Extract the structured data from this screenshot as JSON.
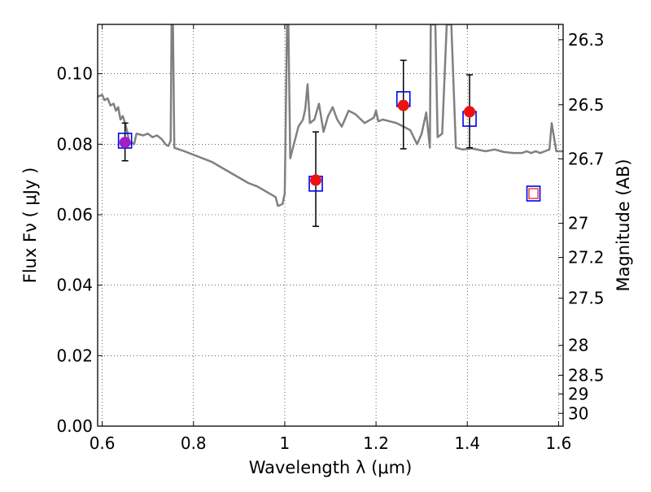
{
  "chart_data": {
    "type": "scatter",
    "xlabel": "Wavelength  λ (μm)",
    "ylabel": "Flux  Fν  ( μJy )",
    "ylabel_right": "Magnitude (AB)",
    "xlim": [
      0.59,
      1.61
    ],
    "ylim": [
      0.0,
      0.114
    ],
    "grid": "dotted",
    "x_ticks": [
      0.6,
      0.8,
      1.0,
      1.2,
      1.4,
      1.6
    ],
    "x_tick_labels": [
      "0.6",
      "0.8",
      "1",
      "1.2",
      "1.4",
      "1.6"
    ],
    "y_ticks": [
      0.0,
      0.02,
      0.04,
      0.06,
      0.08,
      0.1
    ],
    "y_tick_labels": [
      "0.00",
      "0.02",
      "0.04",
      "0.06",
      "0.08",
      "0.10"
    ],
    "right_ticks": [
      26.3,
      26.5,
      26.7,
      27,
      27.2,
      27.5,
      28,
      28.5,
      29,
      30
    ],
    "right_tick_labels": [
      "26.3",
      "26.5",
      "26.7",
      "27",
      "27.2",
      "27.5",
      "28",
      "28.5",
      "29",
      "30"
    ],
    "series": [
      {
        "kind": "model_spectrum",
        "color": "#808080",
        "points": [
          [
            0.59,
            0.0935
          ],
          [
            0.6,
            0.094
          ],
          [
            0.605,
            0.0925
          ],
          [
            0.612,
            0.093
          ],
          [
            0.618,
            0.091
          ],
          [
            0.625,
            0.0915
          ],
          [
            0.63,
            0.0895
          ],
          [
            0.635,
            0.0905
          ],
          [
            0.64,
            0.087
          ],
          [
            0.645,
            0.088
          ],
          [
            0.65,
            0.086
          ],
          [
            0.655,
            0.0835
          ],
          [
            0.66,
            0.08
          ],
          [
            0.665,
            0.0805
          ],
          [
            0.67,
            0.08
          ],
          [
            0.675,
            0.083
          ],
          [
            0.69,
            0.0825
          ],
          [
            0.7,
            0.083
          ],
          [
            0.71,
            0.082
          ],
          [
            0.72,
            0.0825
          ],
          [
            0.73,
            0.0815
          ],
          [
            0.74,
            0.0798
          ],
          [
            0.745,
            0.0795
          ],
          [
            0.75,
            0.081
          ],
          [
            0.752,
            0.114
          ],
          [
            0.755,
            0.114
          ],
          [
            0.758,
            0.079
          ],
          [
            0.78,
            0.078
          ],
          [
            0.8,
            0.077
          ],
          [
            0.82,
            0.076
          ],
          [
            0.84,
            0.075
          ],
          [
            0.86,
            0.0735
          ],
          [
            0.88,
            0.072
          ],
          [
            0.9,
            0.0705
          ],
          [
            0.92,
            0.069
          ],
          [
            0.94,
            0.068
          ],
          [
            0.96,
            0.0665
          ],
          [
            0.98,
            0.065
          ],
          [
            0.985,
            0.0625
          ],
          [
            0.995,
            0.063
          ],
          [
            1.0,
            0.066
          ],
          [
            1.005,
            0.114
          ],
          [
            1.008,
            0.114
          ],
          [
            1.012,
            0.076
          ],
          [
            1.02,
            0.08
          ],
          [
            1.03,
            0.085
          ],
          [
            1.04,
            0.087
          ],
          [
            1.045,
            0.09
          ],
          [
            1.05,
            0.097
          ],
          [
            1.055,
            0.086
          ],
          [
            1.065,
            0.087
          ],
          [
            1.075,
            0.0915
          ],
          [
            1.085,
            0.0835
          ],
          [
            1.095,
            0.088
          ],
          [
            1.105,
            0.0905
          ],
          [
            1.115,
            0.087
          ],
          [
            1.125,
            0.085
          ],
          [
            1.14,
            0.0895
          ],
          [
            1.155,
            0.0885
          ],
          [
            1.175,
            0.086
          ],
          [
            1.195,
            0.0875
          ],
          [
            1.2,
            0.0895
          ],
          [
            1.205,
            0.0865
          ],
          [
            1.215,
            0.087
          ],
          [
            1.23,
            0.0865
          ],
          [
            1.245,
            0.086
          ],
          [
            1.26,
            0.085
          ],
          [
            1.275,
            0.084
          ],
          [
            1.29,
            0.08
          ],
          [
            1.3,
            0.083
          ],
          [
            1.31,
            0.089
          ],
          [
            1.318,
            0.079
          ],
          [
            1.32,
            0.114
          ],
          [
            1.33,
            0.114
          ],
          [
            1.335,
            0.082
          ],
          [
            1.345,
            0.083
          ],
          [
            1.355,
            0.114
          ],
          [
            1.365,
            0.114
          ],
          [
            1.375,
            0.079
          ],
          [
            1.39,
            0.0785
          ],
          [
            1.41,
            0.0788
          ],
          [
            1.44,
            0.078
          ],
          [
            1.46,
            0.0785
          ],
          [
            1.48,
            0.0778
          ],
          [
            1.5,
            0.0775
          ],
          [
            1.52,
            0.0775
          ],
          [
            1.53,
            0.078
          ],
          [
            1.54,
            0.0775
          ],
          [
            1.55,
            0.078
          ],
          [
            1.56,
            0.0775
          ],
          [
            1.57,
            0.078
          ],
          [
            1.58,
            0.0785
          ],
          [
            1.585,
            0.086
          ],
          [
            1.595,
            0.078
          ],
          [
            1.61,
            0.078
          ]
        ]
      },
      {
        "kind": "observed",
        "marker": "filled-circle",
        "color": "#ee1111",
        "points": [
          {
            "x": 0.65,
            "y": 0.0805,
            "err_low": 0.0753,
            "err_high": 0.086,
            "color": "#a020c0"
          },
          {
            "x": 1.068,
            "y": 0.0698,
            "err_low": 0.0567,
            "err_high": 0.0835
          },
          {
            "x": 1.26,
            "y": 0.091,
            "err_low": 0.0787,
            "err_high": 0.1038
          },
          {
            "x": 1.405,
            "y": 0.0892,
            "err_low": 0.079,
            "err_high": 0.0997
          }
        ]
      },
      {
        "kind": "model_photometry",
        "marker": "open-square",
        "color": "#0000ee",
        "points": [
          {
            "x": 0.65,
            "y": 0.081
          },
          {
            "x": 1.068,
            "y": 0.0688
          },
          {
            "x": 1.26,
            "y": 0.0928
          },
          {
            "x": 1.405,
            "y": 0.0872
          },
          {
            "x": 1.545,
            "y": 0.066,
            "inner_color": "#ee1111"
          }
        ]
      }
    ]
  }
}
